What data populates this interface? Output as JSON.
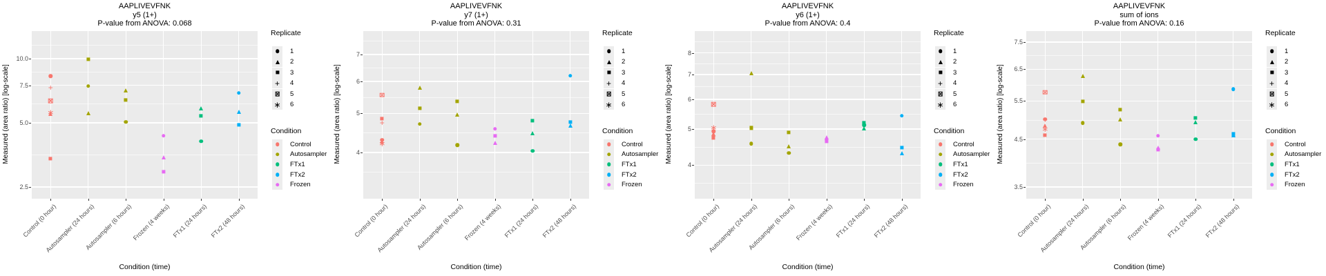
{
  "shared": {
    "x_categories": [
      "Control (0 hour)",
      "Autosampler (24 hours)",
      "Autosampler (6 hours)",
      "Frozen (4 weeks)",
      "FTx1 (24 hours)",
      "FTx2 (48 hours)"
    ],
    "category_condition": [
      "Control",
      "Autosampler",
      "Autosampler",
      "Frozen",
      "FTx1",
      "FTx2"
    ],
    "xlabel": "Condition (time)",
    "ylabel": "Measured (area ratio) [log-scale]"
  },
  "colors": {
    "Control": "#F8766D",
    "Autosampler": "#A3A500",
    "FTx1": "#00BF7D",
    "FTx2": "#00B0F6",
    "Frozen": "#E76BF3"
  },
  "replicate_shapes": {
    "1": "circle",
    "2": "triangle",
    "3": "square",
    "4": "plus",
    "5": "square-cross",
    "6": "asterisk"
  },
  "legend": {
    "replicate": {
      "title": "Replicate",
      "entries": [
        {
          "label": "1",
          "shape": "circle"
        },
        {
          "label": "2",
          "shape": "triangle"
        },
        {
          "label": "3",
          "shape": "square"
        },
        {
          "label": "4",
          "shape": "plus"
        },
        {
          "label": "5",
          "shape": "square-cross"
        },
        {
          "label": "6",
          "shape": "asterisk"
        }
      ]
    },
    "condition": {
      "title": "Condition",
      "entries": [
        {
          "label": "Control",
          "color": "#F8766D"
        },
        {
          "label": "Autosampler",
          "color": "#A3A500"
        },
        {
          "label": "FTx1",
          "color": "#00BF7D"
        },
        {
          "label": "FTx2",
          "color": "#00B0F6"
        },
        {
          "label": "Frozen",
          "color": "#E76BF3"
        }
      ]
    }
  },
  "chart_data": [
    {
      "type": "scatter",
      "panel_id": "y5",
      "title": "AAPLIVEVFNK",
      "subtitle": "y5 (1+)",
      "anova_line": "P-value from ANOVA: 0.068",
      "pvalue": 0.068,
      "xlabel": "Condition (time)",
      "ylabel": "Measured (area ratio) [log-scale]",
      "yscale": "log10",
      "ylim": [
        2.2,
        13.5
      ],
      "yticks": [
        2.5,
        5.0,
        7.5,
        10.0
      ],
      "ytick_labels": [
        "2.5",
        "5.0",
        "7.5",
        "10.0"
      ],
      "grid": true,
      "legend_position": "right",
      "points": [
        {
          "c": 0,
          "replicate": 1,
          "v": 8.3
        },
        {
          "c": 0,
          "replicate": 2,
          "v": 5.5
        },
        {
          "c": 0,
          "replicate": 3,
          "v": 3.4
        },
        {
          "c": 0,
          "replicate": 4,
          "v": 7.3
        },
        {
          "c": 0,
          "replicate": 5,
          "v": 6.35
        },
        {
          "c": 0,
          "replicate": 6,
          "v": 5.6
        },
        {
          "c": 1,
          "replicate": 1,
          "v": 7.45
        },
        {
          "c": 1,
          "replicate": 2,
          "v": 5.55
        },
        {
          "c": 1,
          "replicate": 3,
          "v": 9.95
        },
        {
          "c": 2,
          "replicate": 1,
          "v": 5.05
        },
        {
          "c": 2,
          "replicate": 2,
          "v": 7.1
        },
        {
          "c": 2,
          "replicate": 3,
          "v": 6.4
        },
        {
          "c": 3,
          "replicate": 1,
          "v": 4.35
        },
        {
          "c": 3,
          "replicate": 2,
          "v": 3.45
        },
        {
          "c": 3,
          "replicate": 3,
          "v": 2.95
        },
        {
          "c": 4,
          "replicate": 1,
          "v": 4.1
        },
        {
          "c": 4,
          "replicate": 2,
          "v": 5.85
        },
        {
          "c": 4,
          "replicate": 3,
          "v": 5.4
        },
        {
          "c": 5,
          "replicate": 1,
          "v": 6.9
        },
        {
          "c": 5,
          "replicate": 2,
          "v": 5.65
        },
        {
          "c": 5,
          "replicate": 3,
          "v": 4.9
        }
      ]
    },
    {
      "type": "scatter",
      "panel_id": "y7",
      "title": "AAPLIVEVFNK",
      "subtitle": "y7 (1+)",
      "anova_line": "P-value from ANOVA: 0.31",
      "pvalue": 0.31,
      "xlabel": "Condition (time)",
      "ylabel": "Measured (area ratio) [log-scale]",
      "yscale": "log10",
      "ylim": [
        3.07,
        8.0
      ],
      "yticks": [
        4,
        5,
        6,
        7
      ],
      "ytick_labels": [
        "4",
        "5",
        "6",
        "7"
      ],
      "grid": true,
      "legend_position": "right",
      "points": [
        {
          "c": 0,
          "replicate": 1,
          "v": 4.3
        },
        {
          "c": 0,
          "replicate": 2,
          "v": 4.25
        },
        {
          "c": 0,
          "replicate": 3,
          "v": 4.85
        },
        {
          "c": 0,
          "replicate": 4,
          "v": 4.73
        },
        {
          "c": 0,
          "replicate": 5,
          "v": 5.55
        },
        {
          "c": 0,
          "replicate": 6,
          "v": 4.2
        },
        {
          "c": 1,
          "replicate": 1,
          "v": 4.7
        },
        {
          "c": 1,
          "replicate": 2,
          "v": 5.8
        },
        {
          "c": 1,
          "replicate": 3,
          "v": 5.15
        },
        {
          "c": 2,
          "replicate": 1,
          "v": 4.17
        },
        {
          "c": 2,
          "replicate": 2,
          "v": 4.97
        },
        {
          "c": 2,
          "replicate": 3,
          "v": 5.35
        },
        {
          "c": 3,
          "replicate": 1,
          "v": 4.58
        },
        {
          "c": 3,
          "replicate": 2,
          "v": 4.22
        },
        {
          "c": 3,
          "replicate": 3,
          "v": 4.39
        },
        {
          "c": 4,
          "replicate": 1,
          "v": 4.03
        },
        {
          "c": 4,
          "replicate": 2,
          "v": 4.46
        },
        {
          "c": 4,
          "replicate": 3,
          "v": 4.79
        },
        {
          "c": 5,
          "replicate": 1,
          "v": 6.2
        },
        {
          "c": 5,
          "replicate": 2,
          "v": 4.66
        },
        {
          "c": 5,
          "replicate": 3,
          "v": 4.76
        }
      ]
    },
    {
      "type": "scatter",
      "panel_id": "y6",
      "title": "AAPLIVEVFNK",
      "subtitle": "y6 (1+)",
      "anova_line": "P-value from ANOVA: 0.4",
      "pvalue": 0.4,
      "xlabel": "Condition (time)",
      "ylabel": "Measured (area ratio) [log-scale]",
      "yscale": "log10",
      "ylim": [
        3.25,
        9.15
      ],
      "yticks": [
        4,
        5,
        6,
        7,
        8
      ],
      "ytick_labels": [
        "4",
        "5",
        "6",
        "7",
        "8"
      ],
      "grid": true,
      "legend_position": "right",
      "points": [
        {
          "c": 0,
          "replicate": 1,
          "v": 4.93
        },
        {
          "c": 0,
          "replicate": 2,
          "v": 4.85
        },
        {
          "c": 0,
          "replicate": 3,
          "v": 4.73
        },
        {
          "c": 0,
          "replicate": 4,
          "v": 4.79
        },
        {
          "c": 0,
          "replicate": 5,
          "v": 5.82
        },
        {
          "c": 0,
          "replicate": 6,
          "v": 5.05
        },
        {
          "c": 1,
          "replicate": 1,
          "v": 4.56
        },
        {
          "c": 1,
          "replicate": 2,
          "v": 7.05
        },
        {
          "c": 1,
          "replicate": 3,
          "v": 5.03
        },
        {
          "c": 2,
          "replicate": 1,
          "v": 4.31
        },
        {
          "c": 2,
          "replicate": 2,
          "v": 4.49
        },
        {
          "c": 2,
          "replicate": 3,
          "v": 4.89
        },
        {
          "c": 3,
          "replicate": 1,
          "v": 4.68
        },
        {
          "c": 3,
          "replicate": 2,
          "v": 4.75
        },
        {
          "c": 3,
          "replicate": 3,
          "v": 4.63
        },
        {
          "c": 4,
          "replicate": 1,
          "v": 5.12
        },
        {
          "c": 4,
          "replicate": 2,
          "v": 5.02
        },
        {
          "c": 4,
          "replicate": 3,
          "v": 5.2
        },
        {
          "c": 5,
          "replicate": 1,
          "v": 5.42
        },
        {
          "c": 5,
          "replicate": 2,
          "v": 4.3
        },
        {
          "c": 5,
          "replicate": 3,
          "v": 4.46
        }
      ]
    },
    {
      "type": "scatter",
      "panel_id": "sum-of-ions",
      "title": "AAPLIVEVFNK",
      "subtitle": "sum of ions",
      "anova_line": "P-value from ANOVA: 0.16",
      "pvalue": 0.16,
      "xlabel": "Condition (time)",
      "ylabel": "Measured (area ratio) [log-scale]",
      "yscale": "log10",
      "ylim": [
        3.29,
        7.95
      ],
      "yticks": [
        3.5,
        4.5,
        5.5,
        6.5,
        7.5
      ],
      "ytick_labels": [
        "3.5",
        "4.5",
        "5.5",
        "6.5",
        "7.5"
      ],
      "grid": true,
      "legend_position": "right",
      "points": [
        {
          "c": 0,
          "replicate": 1,
          "v": 5.0
        },
        {
          "c": 0,
          "replicate": 2,
          "v": 4.83
        },
        {
          "c": 0,
          "replicate": 3,
          "v": 4.6
        },
        {
          "c": 0,
          "replicate": 4,
          "v": 4.98
        },
        {
          "c": 0,
          "replicate": 5,
          "v": 5.76
        },
        {
          "c": 0,
          "replicate": 6,
          "v": 4.74
        },
        {
          "c": 1,
          "replicate": 1,
          "v": 4.9
        },
        {
          "c": 1,
          "replicate": 2,
          "v": 6.28
        },
        {
          "c": 1,
          "replicate": 3,
          "v": 5.49
        },
        {
          "c": 2,
          "replicate": 1,
          "v": 4.38
        },
        {
          "c": 2,
          "replicate": 2,
          "v": 4.99
        },
        {
          "c": 2,
          "replicate": 3,
          "v": 5.25
        },
        {
          "c": 3,
          "replicate": 1,
          "v": 4.58
        },
        {
          "c": 3,
          "replicate": 2,
          "v": 4.31
        },
        {
          "c": 3,
          "replicate": 3,
          "v": 4.26
        },
        {
          "c": 4,
          "replicate": 1,
          "v": 4.5
        },
        {
          "c": 4,
          "replicate": 2,
          "v": 4.92
        },
        {
          "c": 4,
          "replicate": 3,
          "v": 5.03
        },
        {
          "c": 5,
          "replicate": 1,
          "v": 5.86
        },
        {
          "c": 5,
          "replicate": 2,
          "v": 4.6
        },
        {
          "c": 5,
          "replicate": 3,
          "v": 4.62
        }
      ]
    }
  ]
}
